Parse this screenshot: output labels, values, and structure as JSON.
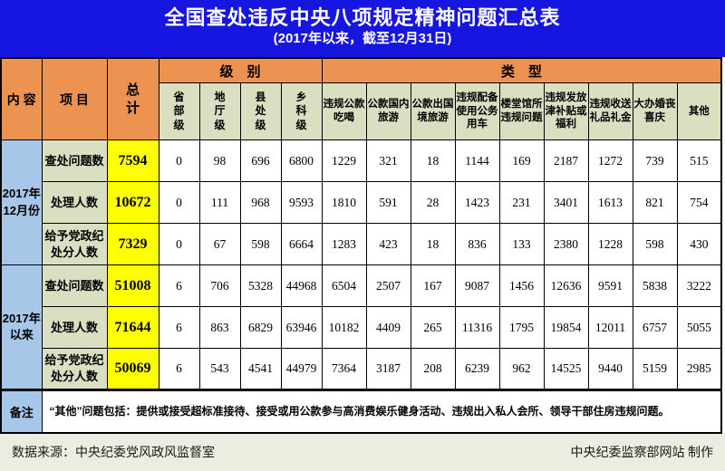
{
  "colors": {
    "title_blue": "#1616E0",
    "header_orange": "#ED9351",
    "subheader_green": "#D9E0C2",
    "total_yellow": "#FFFF00",
    "section_blue": "#A7C7E8",
    "footer_bg": "#E9EEE0",
    "grid_black": "#000000",
    "title_text": "#FFFFFF"
  },
  "chart_data": {
    "type": "table",
    "title": "全国查处违反中央八项规定精神问题汇总表",
    "subtitle": "(2017年以来，截至12月31日)",
    "columns": {
      "content_label": "内 容",
      "project_label": "项 目",
      "total_label": "总计",
      "level_group": "级　别",
      "type_group": "类　型",
      "levels": [
        "省部级",
        "地厅级",
        "县处级",
        "乡科级"
      ],
      "types": [
        "违规公款吃喝",
        "公款国内旅游",
        "公款出国境旅游",
        "违规配备使用公务用车",
        "楼堂馆所违规问题",
        "违规发放津补贴或福利",
        "违规收送礼品礼金",
        "大办婚丧喜庆",
        "其他"
      ]
    },
    "sections": [
      {
        "label": "2017年\n12月份",
        "rows": [
          {
            "project": "查处问题数",
            "total": 7594,
            "levels": [
              0,
              98,
              696,
              6800
            ],
            "types": [
              1229,
              321,
              18,
              1144,
              169,
              2187,
              1272,
              739,
              515
            ]
          },
          {
            "project": "处理人数",
            "total": 10672,
            "levels": [
              0,
              111,
              968,
              9593
            ],
            "types": [
              1810,
              591,
              28,
              1423,
              231,
              3401,
              1613,
              821,
              754
            ]
          },
          {
            "project": "给予党政纪处分人数",
            "total": 7329,
            "levels": [
              0,
              67,
              598,
              6664
            ],
            "types": [
              1283,
              423,
              18,
              836,
              133,
              2380,
              1228,
              598,
              430
            ]
          }
        ]
      },
      {
        "label": "2017年\n以来",
        "rows": [
          {
            "project": "查处问题数",
            "total": 51008,
            "levels": [
              6,
              706,
              5328,
              44968
            ],
            "types": [
              6504,
              2507,
              167,
              9087,
              1456,
              12636,
              9591,
              5838,
              3222
            ]
          },
          {
            "project": "处理人数",
            "total": 71644,
            "levels": [
              6,
              863,
              6829,
              63946
            ],
            "types": [
              10182,
              4409,
              265,
              11316,
              1795,
              19854,
              12011,
              6757,
              5055
            ]
          },
          {
            "project": "给予党政纪处分人数",
            "total": 50069,
            "levels": [
              6,
              543,
              4541,
              44979
            ],
            "types": [
              7364,
              3187,
              208,
              6239,
              962,
              14525,
              9440,
              5159,
              2985
            ]
          }
        ]
      }
    ],
    "note": {
      "label": "备注",
      "text": "“其他”问题包括：提供或接受超标准接待、接受或用公款参与高消费娱乐健身活动、违规出入私人会所、领导干部住房违规问题。"
    },
    "source_left": "数据来源：中央纪委党风政风监督室",
    "source_right": "中央纪委监察部网站 制作"
  }
}
